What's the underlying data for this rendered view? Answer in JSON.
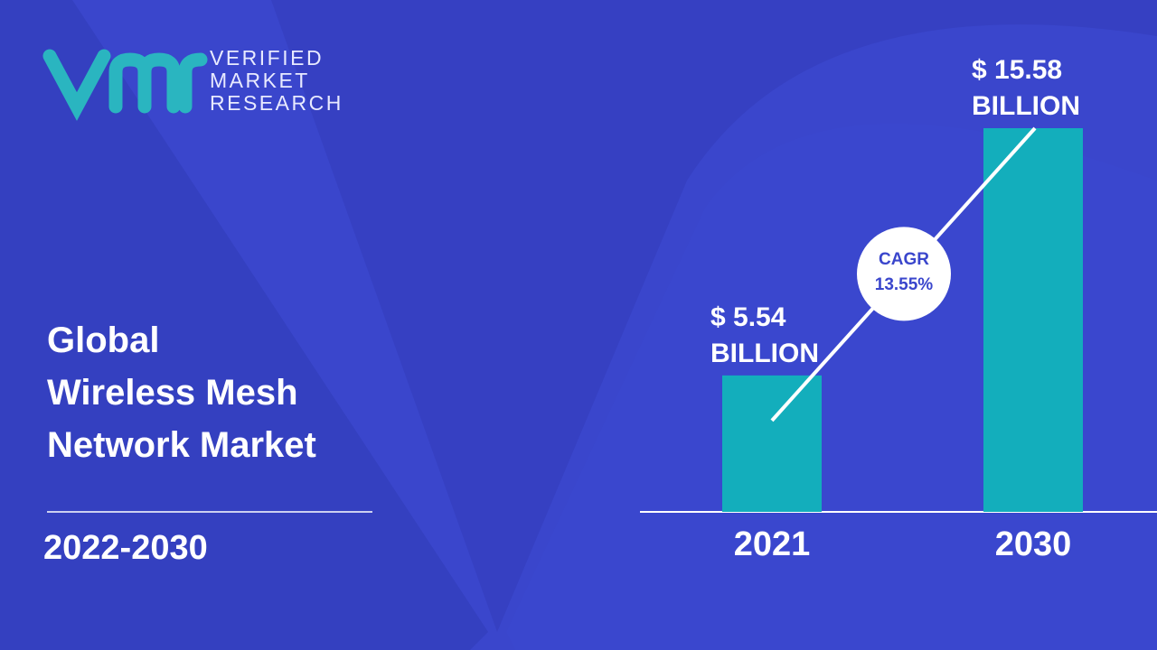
{
  "logo": {
    "lines": [
      "VERIFIED",
      "MARKET",
      "RESEARCH"
    ]
  },
  "headline": {
    "lines": [
      "Global",
      "Wireless Mesh",
      "Network Market"
    ],
    "period": "2022-2030"
  },
  "chart_data": {
    "type": "bar",
    "categories": [
      "2021",
      "2030"
    ],
    "values": [
      5.54,
      15.58
    ],
    "value_labels": [
      "$ 5.54 BILLION",
      "$ 15.58 BILLION"
    ],
    "color": "#13aebc",
    "annotation": {
      "title": "CAGR",
      "text": "13.55%"
    }
  }
}
